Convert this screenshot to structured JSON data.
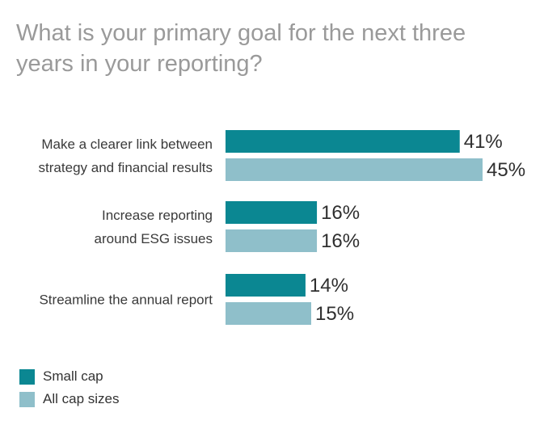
{
  "title": {
    "line1": "What is your primary goal for the next three",
    "line2": "years in your reporting?"
  },
  "colors": {
    "small_cap": "#0b8792",
    "all_cap": "#8fbfca",
    "title": "#9a9a9a"
  },
  "chart_data": {
    "type": "bar",
    "orientation": "horizontal",
    "title": "What is your primary goal for the next three years in your reporting?",
    "categories": [
      [
        "Make a clearer link between",
        "strategy and financial results"
      ],
      [
        "Increase reporting",
        "around ESG issues"
      ],
      [
        "Streamline the annual report"
      ]
    ],
    "series": [
      {
        "name": "Small cap",
        "color": "#0b8792",
        "values": [
          41,
          16,
          14
        ]
      },
      {
        "name": "All cap sizes",
        "color": "#8fbfca",
        "values": [
          45,
          16,
          15
        ]
      }
    ],
    "value_suffix": "%",
    "xlim": [
      0,
      45
    ],
    "grid": false,
    "legend_position": "bottom-left"
  }
}
